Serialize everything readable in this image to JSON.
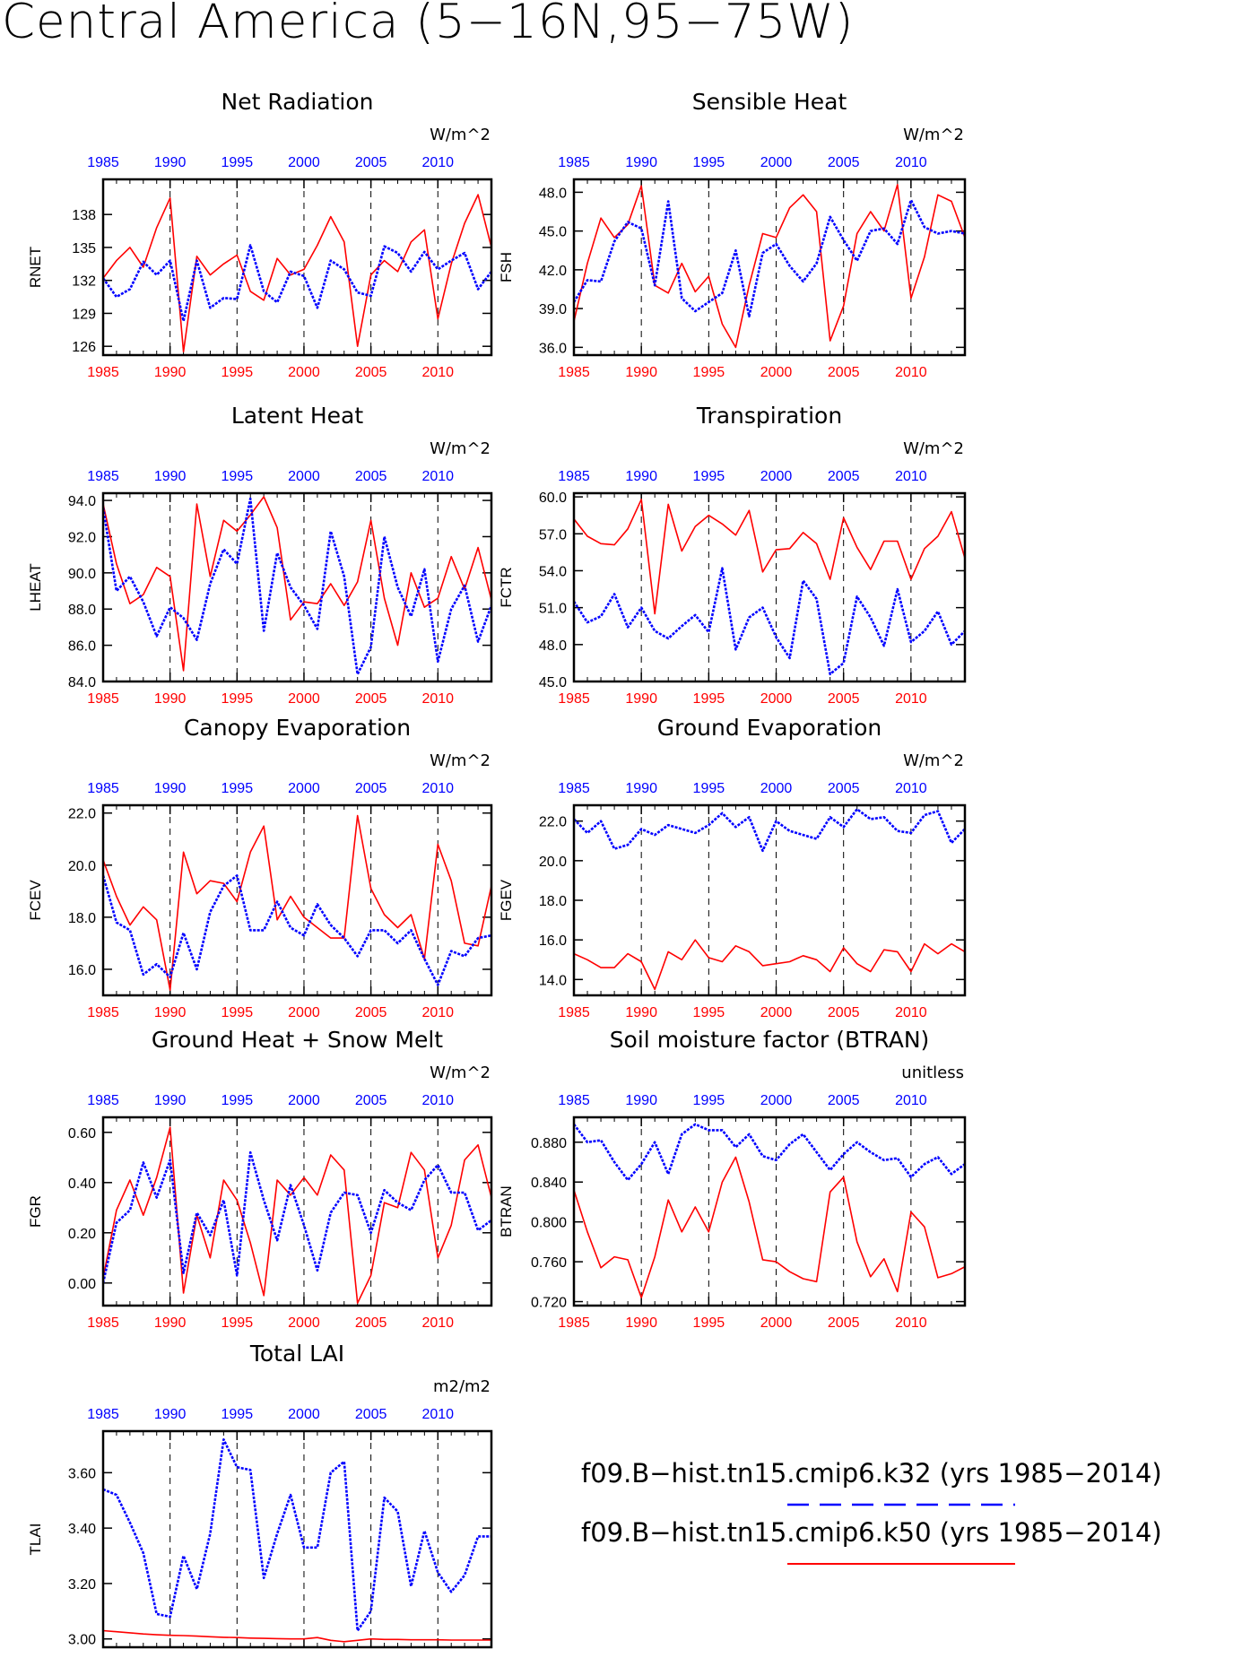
{
  "title": "Central America (5−16N,95−75W)",
  "legend": {
    "k32": {
      "label": "f09.B−hist.tn15.cmip6.k32 (yrs 1985−2014)",
      "color": "#0000ff",
      "style": "dashed"
    },
    "k50": {
      "label": "f09.B−hist.tn15.cmip6.k50 (yrs 1985−2014)",
      "color": "#ff0000",
      "style": "solid"
    }
  },
  "chart_data": [
    {
      "type": "line",
      "title": "Net Radiation",
      "ylabel": "RNET",
      "units": "W/m^2",
      "xlim": [
        1985,
        2014
      ],
      "ylim": [
        125.2,
        141.2
      ],
      "xticks": [
        1985,
        1990,
        1995,
        2000,
        2005,
        2010
      ],
      "yticks": [
        126,
        129,
        132,
        135,
        138
      ],
      "ytick_labels": [
        "126",
        "129",
        "132",
        "135",
        "138"
      ],
      "grid_x": [
        1990,
        1995,
        2000,
        2005,
        2010
      ],
      "series": [
        {
          "key": "k50",
          "values": [
            132.2,
            133.8,
            135,
            133.2,
            136.8,
            139.5,
            125.5,
            134.2,
            132.5,
            133.5,
            134.3,
            131,
            130.2,
            134,
            132.5,
            133,
            135.2,
            137.8,
            135.5,
            126,
            132.5,
            133.8,
            132.8,
            135.5,
            136.6,
            128.5,
            133.5,
            137.2,
            139.8,
            135
          ]
        },
        {
          "key": "k32",
          "values": [
            132.2,
            130.5,
            131.2,
            133.7,
            132.5,
            133.8,
            128.3,
            133.8,
            129.5,
            130.4,
            130.3,
            135.2,
            131,
            130,
            132.8,
            132.4,
            129.5,
            133.8,
            133,
            130.9,
            130.6,
            135.1,
            134.5,
            132.8,
            134.6,
            133,
            133.8,
            134.5,
            131.2,
            132.8
          ]
        }
      ]
    },
    {
      "type": "line",
      "title": "Sensible Heat",
      "ylabel": "FSH",
      "units": "W/m^2",
      "xlim": [
        1985,
        2014
      ],
      "ylim": [
        35.4,
        49.0
      ],
      "xticks": [
        1985,
        1990,
        1995,
        2000,
        2005,
        2010
      ],
      "yticks": [
        36,
        39,
        42,
        45,
        48
      ],
      "ytick_labels": [
        "36.0",
        "39.0",
        "42.0",
        "45.0",
        "48.0"
      ],
      "grid_x": [
        1990,
        1995,
        2000,
        2005,
        2010
      ],
      "series": [
        {
          "key": "k50",
          "values": [
            38,
            42.5,
            46,
            44.5,
            45.5,
            48.5,
            40.8,
            40.2,
            42.5,
            40.3,
            41.5,
            37.8,
            36,
            40.8,
            44.8,
            44.5,
            46.8,
            47.8,
            46.5,
            36.5,
            39.2,
            44.8,
            46.5,
            45,
            48.6,
            39.8,
            43,
            47.8,
            47.3,
            44.5
          ]
        },
        {
          "key": "k32",
          "values": [
            39.5,
            41.2,
            41.1,
            44.2,
            45.7,
            45.2,
            40.8,
            47.3,
            39.8,
            38.8,
            39.5,
            40.2,
            43.5,
            38.4,
            43.3,
            44,
            42.3,
            41.1,
            42.5,
            46.1,
            44.3,
            42.7,
            45,
            45.2,
            44,
            47.4,
            45.3,
            44.8,
            45,
            44.8
          ]
        }
      ]
    },
    {
      "type": "line",
      "title": "Latent Heat",
      "ylabel": "LHEAT",
      "units": "W/m^2",
      "xlim": [
        1985,
        2014
      ],
      "ylim": [
        84.0,
        94.4
      ],
      "xticks": [
        1985,
        1990,
        1995,
        2000,
        2005,
        2010
      ],
      "yticks": [
        84,
        86,
        88,
        90,
        92,
        94
      ],
      "ytick_labels": [
        "84.0",
        "86.0",
        "88.0",
        "90.0",
        "92.0",
        "94.0"
      ],
      "grid_x": [
        1990,
        1995,
        2000,
        2005,
        2010
      ],
      "series": [
        {
          "key": "k50",
          "values": [
            93.8,
            90.5,
            88.3,
            88.8,
            90.3,
            89.8,
            84.6,
            93.8,
            89.8,
            92.9,
            92.3,
            93.2,
            94.2,
            92.5,
            87.4,
            88.4,
            88.3,
            89.4,
            88.2,
            89.5,
            92.9,
            88.6,
            86,
            90,
            88.1,
            88.6,
            90.9,
            89.1,
            91.4,
            88.5
          ]
        },
        {
          "key": "k32",
          "values": [
            93.6,
            89,
            89.8,
            88.4,
            86.5,
            88.1,
            87.5,
            86.3,
            89.4,
            91.3,
            90.5,
            94.1,
            86.8,
            91.1,
            89.2,
            88.2,
            86.9,
            92.3,
            89.8,
            84.4,
            85.9,
            92,
            89.2,
            87.6,
            90.2,
            85.1,
            88,
            89.3,
            86.2,
            88.2
          ]
        }
      ]
    },
    {
      "type": "line",
      "title": "Transpiration",
      "ylabel": "FCTR",
      "units": "W/m^2",
      "xlim": [
        1985,
        2014
      ],
      "ylim": [
        45.0,
        60.3
      ],
      "xticks": [
        1985,
        1990,
        1995,
        2000,
        2005,
        2010
      ],
      "yticks": [
        45,
        48,
        51,
        54,
        57,
        60
      ],
      "ytick_labels": [
        "45.0",
        "48.0",
        "51.0",
        "54.0",
        "57.0",
        "60.0"
      ],
      "grid_x": [
        1990,
        1995,
        2000,
        2005,
        2010
      ],
      "series": [
        {
          "key": "k50",
          "values": [
            58.2,
            56.8,
            56.2,
            56.1,
            57.4,
            59.8,
            50.5,
            59.4,
            55.6,
            57.6,
            58.5,
            57.8,
            56.9,
            58.9,
            53.9,
            55.7,
            55.8,
            57.1,
            56.2,
            53.3,
            58.3,
            55.9,
            54.1,
            56.4,
            56.4,
            53.3,
            55.8,
            56.8,
            58.8,
            55
          ]
        },
        {
          "key": "k32",
          "values": [
            51.5,
            49.8,
            50.3,
            52.1,
            49.4,
            51,
            49.1,
            48.5,
            49.5,
            50.4,
            49,
            54.2,
            47.6,
            50.2,
            51,
            48.6,
            46.9,
            53.2,
            51.7,
            45.6,
            46.5,
            51.9,
            50.2,
            47.9,
            52.5,
            48.2,
            49.1,
            50.7,
            48,
            49.1
          ]
        }
      ]
    },
    {
      "type": "line",
      "title": "Canopy Evaporation",
      "ylabel": "FCEV",
      "units": "W/m^2",
      "xlim": [
        1985,
        2014
      ],
      "ylim": [
        15.0,
        22.3
      ],
      "xticks": [
        1985,
        1990,
        1995,
        2000,
        2005,
        2010
      ],
      "yticks": [
        16,
        18,
        20,
        22
      ],
      "ytick_labels": [
        "16.0",
        "18.0",
        "20.0",
        "22.0"
      ],
      "grid_x": [
        1990,
        1995,
        2000,
        2005,
        2010
      ],
      "series": [
        {
          "key": "k50",
          "values": [
            20.2,
            18.8,
            17.7,
            18.4,
            17.9,
            15.2,
            20.5,
            18.9,
            19.4,
            19.3,
            18.6,
            20.5,
            21.5,
            17.9,
            18.8,
            18,
            17.6,
            17.2,
            17.2,
            21.9,
            19.1,
            18.1,
            17.6,
            18.1,
            16.4,
            20.8,
            19.4,
            17,
            16.9,
            19.2
          ]
        },
        {
          "key": "k32",
          "values": [
            19.6,
            17.8,
            17.5,
            15.8,
            16.2,
            15.7,
            17.4,
            16,
            18.2,
            19.2,
            19.6,
            17.5,
            17.5,
            18.6,
            17.6,
            17.3,
            18.5,
            17.7,
            17.2,
            16.5,
            17.5,
            17.5,
            17,
            17.5,
            16.4,
            15.4,
            16.7,
            16.5,
            17.2,
            17.3
          ]
        }
      ]
    },
    {
      "type": "line",
      "title": "Ground Evaporation",
      "ylabel": "FGEV",
      "units": "W/m^2",
      "xlim": [
        1985,
        2014
      ],
      "ylim": [
        13.2,
        22.8
      ],
      "xticks": [
        1985,
        1990,
        1995,
        2000,
        2005,
        2010
      ],
      "yticks": [
        14,
        16,
        18,
        20,
        22
      ],
      "ytick_labels": [
        "14.0",
        "16.0",
        "18.0",
        "20.0",
        "22.0"
      ],
      "grid_x": [
        1990,
        1995,
        2000,
        2005,
        2010
      ],
      "series": [
        {
          "key": "k50",
          "values": [
            15.3,
            15,
            14.6,
            14.6,
            15.3,
            14.9,
            13.5,
            15.4,
            15,
            16,
            15.1,
            14.9,
            15.7,
            15.4,
            14.7,
            14.8,
            14.9,
            15.2,
            15,
            14.4,
            15.6,
            14.8,
            14.4,
            15.5,
            15.4,
            14.4,
            15.8,
            15.3,
            15.8,
            15.4
          ]
        },
        {
          "key": "k32",
          "values": [
            22.1,
            21.4,
            22,
            20.6,
            20.8,
            21.6,
            21.3,
            21.8,
            21.6,
            21.4,
            21.8,
            22.4,
            21.7,
            22.2,
            20.5,
            22,
            21.5,
            21.3,
            21.1,
            22.2,
            21.7,
            22.6,
            22.1,
            22.2,
            21.5,
            21.4,
            22.3,
            22.5,
            20.9,
            21.6
          ]
        }
      ]
    },
    {
      "type": "line",
      "title": "Ground Heat + Snow Melt",
      "ylabel": "FGR",
      "units": "W/m^2",
      "xlim": [
        1985,
        2014
      ],
      "ylim": [
        -0.09,
        0.66
      ],
      "xticks": [
        1985,
        1990,
        1995,
        2000,
        2005,
        2010
      ],
      "yticks": [
        0,
        0.2,
        0.4,
        0.6
      ],
      "ytick_labels": [
        "0.00",
        "0.20",
        "0.40",
        "0.60"
      ],
      "grid_x": [
        1990,
        1995,
        2000,
        2005,
        2010
      ],
      "series": [
        {
          "key": "k50",
          "values": [
            0.02,
            0.29,
            0.41,
            0.27,
            0.42,
            0.62,
            -0.04,
            0.27,
            0.1,
            0.41,
            0.33,
            0.16,
            -0.05,
            0.41,
            0.35,
            0.42,
            0.35,
            0.51,
            0.45,
            -0.08,
            0.03,
            0.32,
            0.3,
            0.52,
            0.45,
            0.1,
            0.23,
            0.49,
            0.55,
            0.34
          ]
        },
        {
          "key": "k32",
          "values": [
            0.0,
            0.24,
            0.29,
            0.48,
            0.34,
            0.49,
            0.04,
            0.28,
            0.19,
            0.33,
            0.03,
            0.52,
            0.33,
            0.17,
            0.39,
            0.23,
            0.05,
            0.28,
            0.36,
            0.35,
            0.2,
            0.37,
            0.32,
            0.29,
            0.41,
            0.47,
            0.36,
            0.36,
            0.21,
            0.25
          ]
        }
      ]
    },
    {
      "type": "line",
      "title": "Soil moisture factor (BTRAN)",
      "ylabel": "BTRAN",
      "units": "unitless",
      "xlim": [
        1985,
        2014
      ],
      "ylim": [
        0.716,
        0.905
      ],
      "xticks": [
        1985,
        1990,
        1995,
        2000,
        2005,
        2010
      ],
      "yticks": [
        0.72,
        0.76,
        0.8,
        0.84,
        0.88
      ],
      "ytick_labels": [
        "0.720",
        "0.760",
        "0.800",
        "0.840",
        "0.880"
      ],
      "grid_x": [
        1990,
        1995,
        2000,
        2005,
        2010
      ],
      "series": [
        {
          "key": "k50",
          "values": [
            0.832,
            0.79,
            0.754,
            0.765,
            0.762,
            0.724,
            0.765,
            0.822,
            0.79,
            0.815,
            0.79,
            0.84,
            0.865,
            0.82,
            0.762,
            0.76,
            0.75,
            0.743,
            0.74,
            0.83,
            0.845,
            0.78,
            0.745,
            0.763,
            0.73,
            0.81,
            0.795,
            0.744,
            0.748,
            0.755
          ]
        },
        {
          "key": "k32",
          "values": [
            0.898,
            0.88,
            0.882,
            0.86,
            0.842,
            0.858,
            0.88,
            0.848,
            0.888,
            0.898,
            0.892,
            0.892,
            0.875,
            0.888,
            0.866,
            0.862,
            0.878,
            0.888,
            0.87,
            0.852,
            0.868,
            0.88,
            0.87,
            0.862,
            0.864,
            0.845,
            0.858,
            0.865,
            0.848,
            0.858
          ]
        }
      ]
    },
    {
      "type": "line",
      "title": "Total LAI",
      "ylabel": "TLAI",
      "units": "m2/m2",
      "xlim": [
        1985,
        2014
      ],
      "ylim": [
        2.97,
        3.75
      ],
      "xticks": [
        1985,
        1990,
        1995,
        2000,
        2005,
        2010
      ],
      "yticks": [
        3.0,
        3.2,
        3.4,
        3.6
      ],
      "ytick_labels": [
        "3.00",
        "3.20",
        "3.40",
        "3.60"
      ],
      "grid_x": [
        1990,
        1995,
        2000,
        2005,
        2010
      ],
      "series": [
        {
          "key": "k50",
          "values": [
            3.03,
            3.026,
            3.022,
            3.018,
            3.015,
            3.013,
            3.012,
            3.01,
            3.008,
            3.006,
            3.005,
            3.003,
            3.002,
            3.001,
            3.0,
            3.0,
            3.005,
            2.995,
            2.99,
            2.995,
            3.0,
            2.998,
            2.998,
            2.997,
            2.997,
            2.997,
            2.996,
            2.996,
            2.996,
            2.996
          ]
        },
        {
          "key": "k32",
          "values": [
            3.54,
            3.52,
            3.42,
            3.31,
            3.09,
            3.08,
            3.3,
            3.18,
            3.38,
            3.72,
            3.62,
            3.61,
            3.22,
            3.38,
            3.52,
            3.33,
            3.33,
            3.6,
            3.64,
            3.03,
            3.1,
            3.51,
            3.46,
            3.19,
            3.39,
            3.24,
            3.17,
            3.23,
            3.37,
            3.37
          ]
        }
      ]
    }
  ]
}
